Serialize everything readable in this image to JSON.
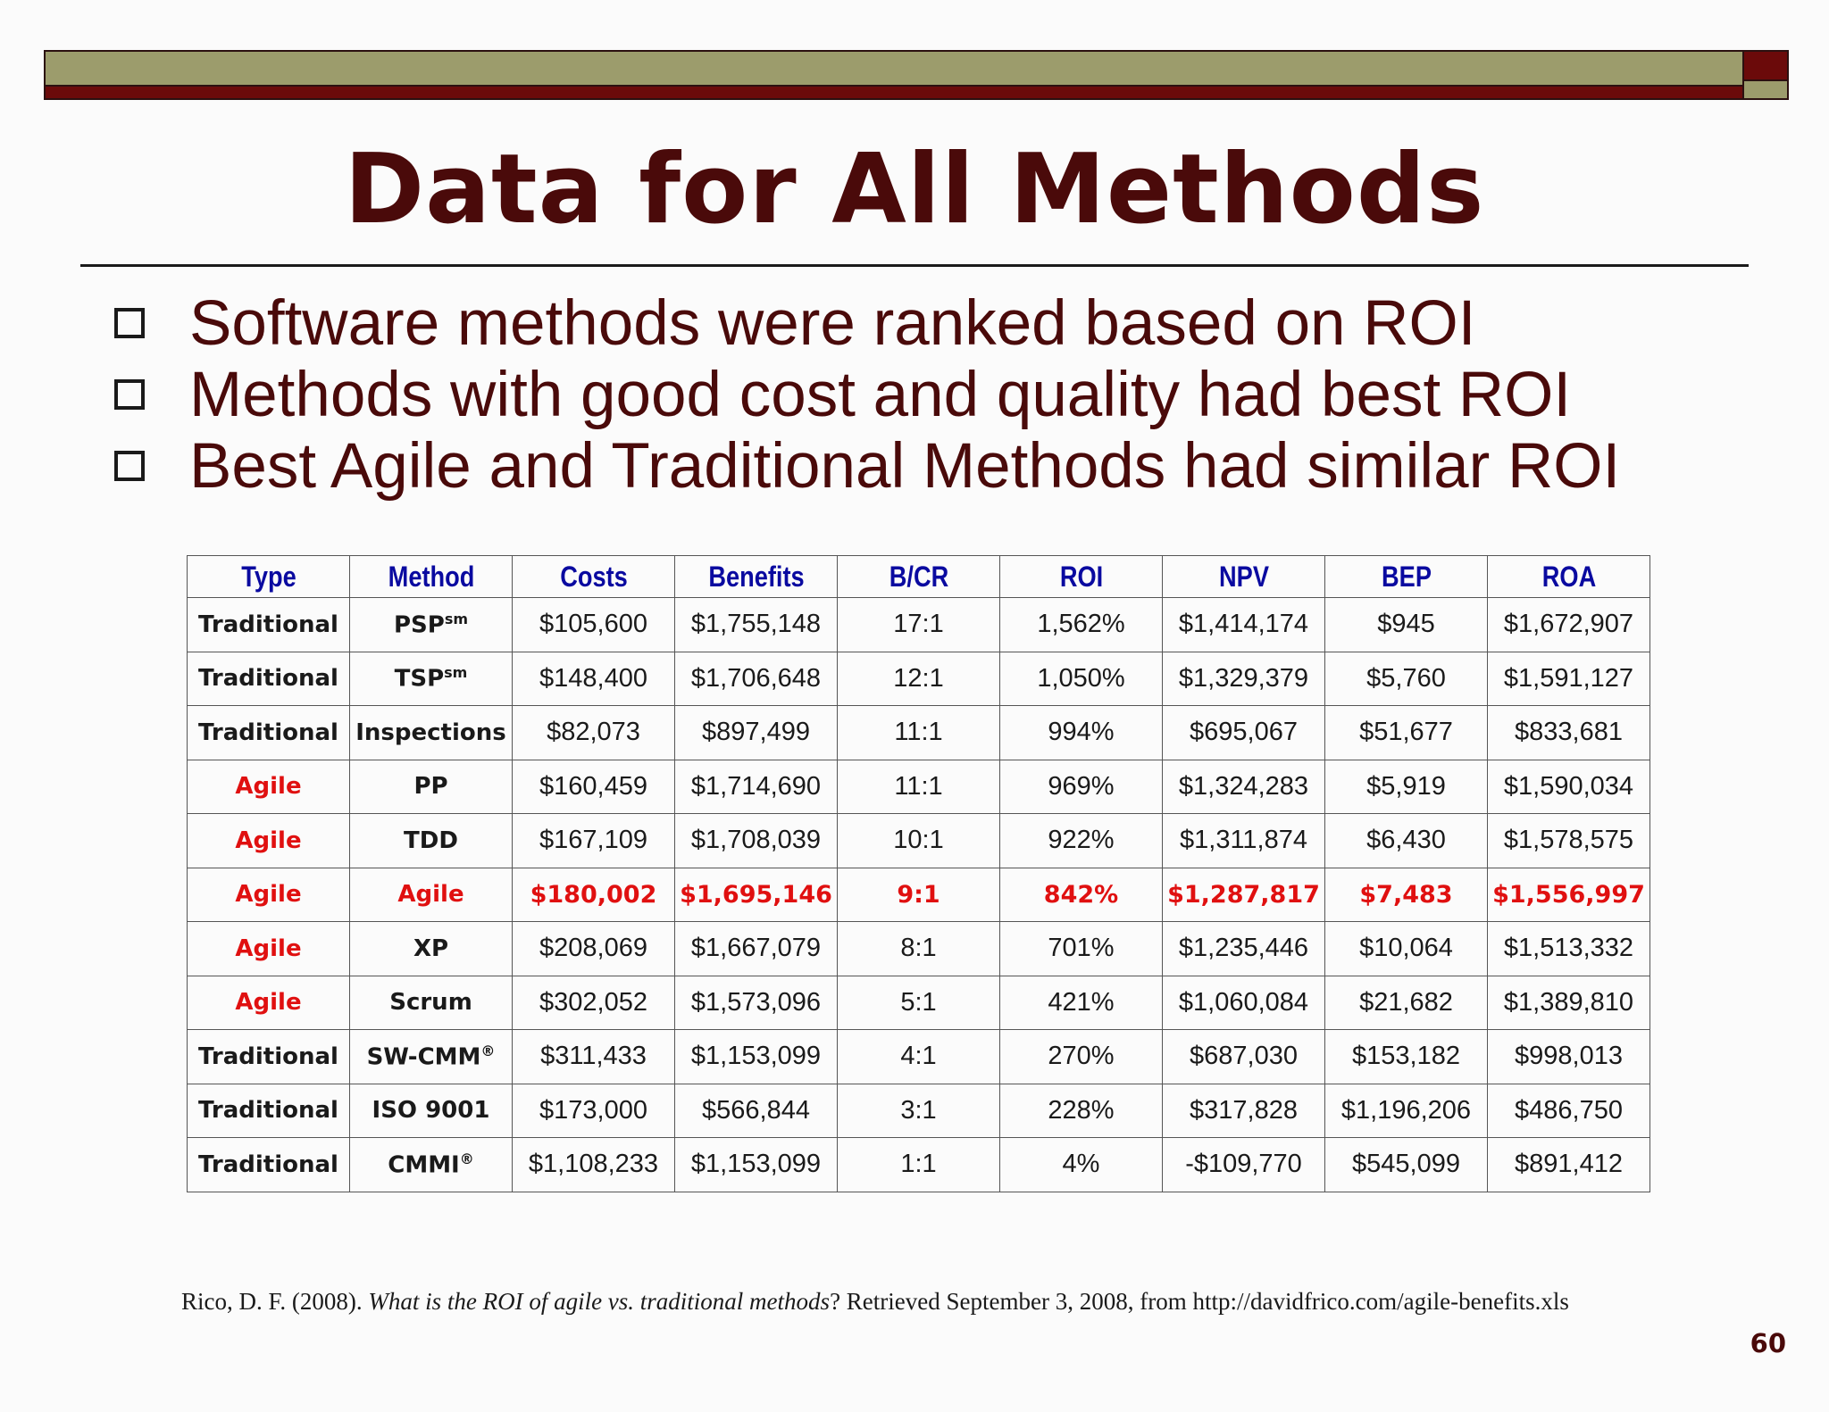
{
  "slide": {
    "title": "Data for All Methods",
    "bullets": [
      "Software methods were ranked based on ROI",
      "Methods with good cost and quality had best ROI",
      "Best Agile and Traditional Methods had similar ROI"
    ],
    "page_number": "60"
  },
  "colors": {
    "title": "#4a0a0a",
    "header": "#0a0aa0",
    "agile": "#e01010",
    "bar_olive": "#9c9c6c",
    "bar_maroon": "#6b0a0a"
  },
  "table": {
    "headers": [
      "Type",
      "Method",
      "Costs",
      "Benefits",
      "B/CR",
      "ROI",
      "NPV",
      "BEP",
      "ROA"
    ],
    "rows": [
      {
        "type": "Traditional",
        "method": "PSP",
        "method_suffix": "sm",
        "costs": "$105,600",
        "benefits": "$1,755,148",
        "bcr": "17:1",
        "roi": "1,562%",
        "npv": "$1,414,174",
        "bep": "$945",
        "roa": "$1,672,907"
      },
      {
        "type": "Traditional",
        "method": "TSP",
        "method_suffix": "sm",
        "costs": "$148,400",
        "benefits": "$1,706,648",
        "bcr": "12:1",
        "roi": "1,050%",
        "npv": "$1,329,379",
        "bep": "$5,760",
        "roa": "$1,591,127"
      },
      {
        "type": "Traditional",
        "method": "Inspections",
        "method_suffix": "",
        "costs": "$82,073",
        "benefits": "$897,499",
        "bcr": "11:1",
        "roi": "994%",
        "npv": "$695,067",
        "bep": "$51,677",
        "roa": "$833,681"
      },
      {
        "type": "Agile",
        "method": "PP",
        "method_suffix": "",
        "costs": "$160,459",
        "benefits": "$1,714,690",
        "bcr": "11:1",
        "roi": "969%",
        "npv": "$1,324,283",
        "bep": "$5,919",
        "roa": "$1,590,034"
      },
      {
        "type": "Agile",
        "method": "TDD",
        "method_suffix": "",
        "costs": "$167,109",
        "benefits": "$1,708,039",
        "bcr": "10:1",
        "roi": "922%",
        "npv": "$1,311,874",
        "bep": "$6,430",
        "roa": "$1,578,575"
      },
      {
        "type": "Agile",
        "method": "Agile",
        "method_suffix": "",
        "costs": "$180,002",
        "benefits": "$1,695,146",
        "bcr": "9:1",
        "roi": "842%",
        "npv": "$1,287,817",
        "bep": "$7,483",
        "roa": "$1,556,997"
      },
      {
        "type": "Agile",
        "method": "XP",
        "method_suffix": "",
        "costs": "$208,069",
        "benefits": "$1,667,079",
        "bcr": "8:1",
        "roi": "701%",
        "npv": "$1,235,446",
        "bep": "$10,064",
        "roa": "$1,513,332"
      },
      {
        "type": "Agile",
        "method": "Scrum",
        "method_suffix": "",
        "costs": "$302,052",
        "benefits": "$1,573,096",
        "bcr": "5:1",
        "roi": "421%",
        "npv": "$1,060,084",
        "bep": "$21,682",
        "roa": "$1,389,810"
      },
      {
        "type": "Traditional",
        "method": "SW-CMM",
        "method_suffix": "®",
        "costs": "$311,433",
        "benefits": "$1,153,099",
        "bcr": "4:1",
        "roi": "270%",
        "npv": "$687,030",
        "bep": "$153,182",
        "roa": "$998,013"
      },
      {
        "type": "Traditional",
        "method": "ISO 9001",
        "method_suffix": "",
        "costs": "$173,000",
        "benefits": "$566,844",
        "bcr": "3:1",
        "roi": "228%",
        "npv": "$317,828",
        "bep": "$1,196,206",
        "roa": "$486,750"
      },
      {
        "type": "Traditional",
        "method": "CMMI",
        "method_suffix": "®",
        "costs": "$1,108,233",
        "benefits": "$1,153,099",
        "bcr": "1:1",
        "roi": "4%",
        "npv": "-$109,770",
        "bep": "$545,099",
        "roa": "$891,412"
      }
    ]
  },
  "citation": {
    "prefix": "Rico, D. F. (2008). ",
    "title": "What is the ROI of agile vs. traditional methods",
    "suffix": "? Retrieved September 3, 2008, from http://davidfrico.com/agile-benefits.xls"
  }
}
